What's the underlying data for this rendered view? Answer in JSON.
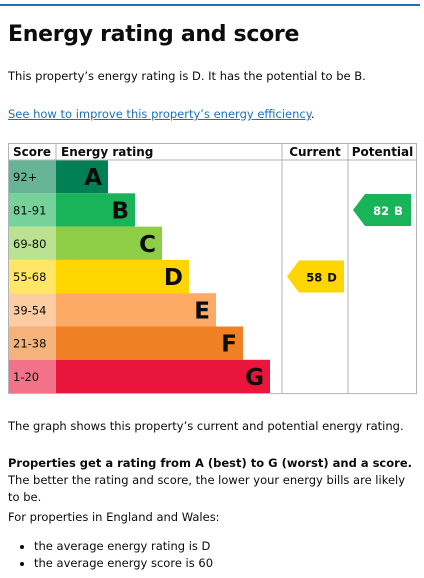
{
  "header": {
    "title": "Energy rating and score"
  },
  "intro": "This property’s energy rating is D. It has the potential to be B.",
  "link": {
    "text": "See how to improve this property’s energy efficiency",
    "end": "."
  },
  "table": {
    "headers": [
      "Score",
      "Energy rating",
      "Current",
      "Potential"
    ],
    "bands": [
      {
        "score": "92+",
        "letter": "A",
        "color": "#008054",
        "light": "#66b398"
      },
      {
        "score": "81-91",
        "letter": "B",
        "color": "#19b459",
        "light": "#75d29b"
      },
      {
        "score": "69-80",
        "letter": "C",
        "color": "#8dce46",
        "light": "#bbe290"
      },
      {
        "score": "55-68",
        "letter": "D",
        "color": "#ffd500",
        "light": "#ffe666"
      },
      {
        "score": "39-54",
        "letter": "E",
        "color": "#fcaa65",
        "light": "#fdcca3"
      },
      {
        "score": "21-38",
        "letter": "F",
        "color": "#ef8023",
        "light": "#f5b37b"
      },
      {
        "score": "1-20",
        "letter": "G",
        "color": "#e9153b",
        "light": "#f27389"
      }
    ],
    "current": {
      "value": 58,
      "letter": "D"
    },
    "potential": {
      "value": 82,
      "letter": "B"
    }
  },
  "explanation": "The graph shows this property’s current and potential energy rating.",
  "rating_note": {
    "bold": "Properties get a rating from A (best) to G (worst) and a score.",
    "rest": "The better the rating and score, the lower your energy bills are likely to be."
  },
  "averages": {
    "intro": "For properties in England and Wales:",
    "items": [
      "the average energy rating is D",
      "the average energy score is 60"
    ]
  }
}
